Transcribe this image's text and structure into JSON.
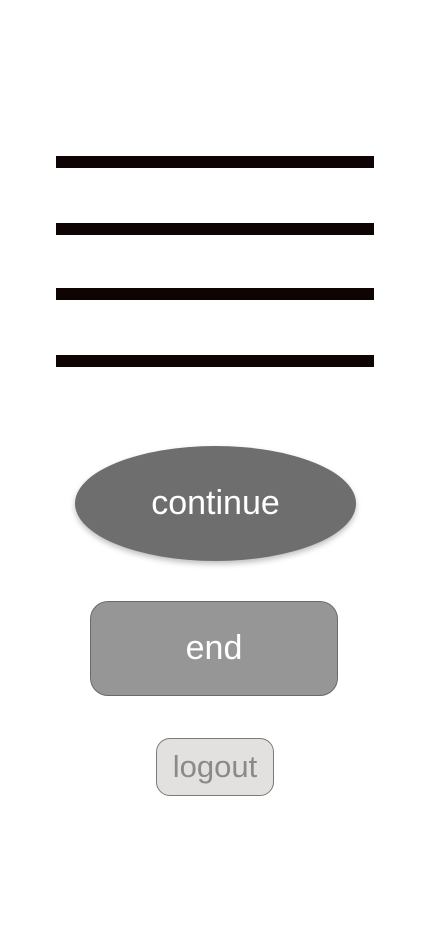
{
  "menu": {
    "icon": "hamburger-menu-icon",
    "bar_color": "#0f0404"
  },
  "buttons": {
    "continue_label": "continue",
    "end_label": "end",
    "logout_label": "logout"
  },
  "colors": {
    "continue_bg": "#6e6e6e",
    "end_bg": "#969696",
    "logout_bg": "#e2e1df",
    "logout_text": "#8a8a8a"
  }
}
